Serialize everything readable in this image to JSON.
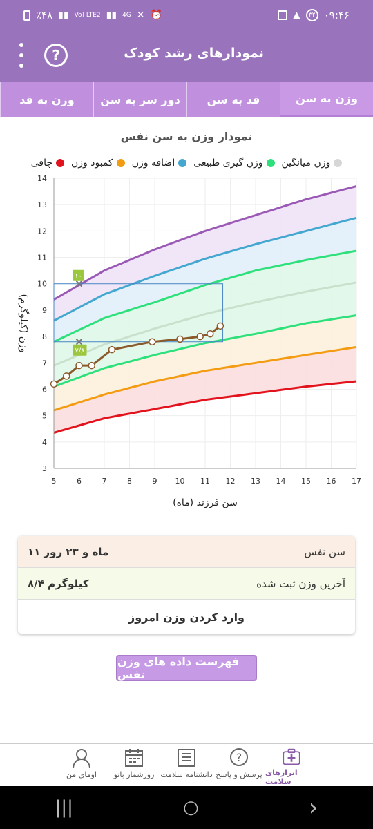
{
  "status": {
    "time": "۰۹:۴۶",
    "notif_count": "۳۲",
    "battery": "٪۴۸",
    "net_left": "Vo) LTE2",
    "net_4g": "4G"
  },
  "appbar": {
    "title": "نمودارهای رشد کودک",
    "help": "?"
  },
  "tabs": [
    {
      "label": "وزن به سن",
      "active": true
    },
    {
      "label": "قد به سن",
      "active": false
    },
    {
      "label": "دور سر به سن",
      "active": false
    },
    {
      "label": "وزن به قد",
      "active": false
    }
  ],
  "chart_title": "نمودار وزن به سن نفس",
  "legend": [
    {
      "label": "چاقی",
      "color": "#e3131d"
    },
    {
      "label": "کمبود وزن",
      "color": "#f39c12"
    },
    {
      "label": "اضافه وزن",
      "color": "#43a7d0"
    },
    {
      "label": "وزن گیری طبیعی",
      "color": "#2ee07c"
    },
    {
      "label": "وزن میانگین",
      "color": "#d6d6d6"
    }
  ],
  "chart_data": {
    "type": "line",
    "xlabel": "سن فرزند (ماه)",
    "ylabel": "وزن (کیلوگرم)",
    "xlim": [
      5,
      17
    ],
    "ylim": [
      3,
      14
    ],
    "xticks": [
      5,
      6,
      7,
      8,
      9,
      10,
      11,
      12,
      13,
      14,
      15,
      16,
      17
    ],
    "yticks": [
      3,
      4,
      5,
      6,
      7,
      8,
      9,
      10,
      11,
      12,
      13,
      14
    ],
    "curves": [
      {
        "color": "#9b59b6",
        "fill": "#efe3f6",
        "points": [
          [
            5,
            9.4
          ],
          [
            7,
            10.5
          ],
          [
            9,
            11.3
          ],
          [
            11,
            12.0
          ],
          [
            13,
            12.6
          ],
          [
            15,
            13.2
          ],
          [
            17,
            13.7
          ]
        ]
      },
      {
        "color": "#43a7d0",
        "fill": "#e1eefa",
        "points": [
          [
            5,
            8.6
          ],
          [
            7,
            9.6
          ],
          [
            9,
            10.3
          ],
          [
            11,
            10.95
          ],
          [
            13,
            11.5
          ],
          [
            15,
            12.0
          ],
          [
            17,
            12.5
          ]
        ]
      },
      {
        "color": "#2ee07c",
        "fill": "#dff7e8",
        "points": [
          [
            5,
            7.8
          ],
          [
            7,
            8.7
          ],
          [
            9,
            9.3
          ],
          [
            11,
            9.95
          ],
          [
            13,
            10.5
          ],
          [
            15,
            10.9
          ],
          [
            17,
            11.25
          ]
        ]
      },
      {
        "color": "#c8e0cc",
        "fill": "#dff7e8",
        "points": [
          [
            5,
            6.9
          ],
          [
            7,
            7.7
          ],
          [
            9,
            8.3
          ],
          [
            11,
            8.85
          ],
          [
            13,
            9.3
          ],
          [
            15,
            9.7
          ],
          [
            17,
            10.05
          ]
        ]
      },
      {
        "color": "#2ee07c",
        "fill": "#fdf1dc",
        "points": [
          [
            5,
            6.1
          ],
          [
            7,
            6.8
          ],
          [
            9,
            7.3
          ],
          [
            11,
            7.75
          ],
          [
            13,
            8.1
          ],
          [
            15,
            8.5
          ],
          [
            17,
            8.8
          ]
        ]
      },
      {
        "color": "#f39c12",
        "fill": "#fbdede",
        "points": [
          [
            5,
            5.2
          ],
          [
            7,
            5.8
          ],
          [
            9,
            6.3
          ],
          [
            11,
            6.7
          ],
          [
            13,
            7.0
          ],
          [
            15,
            7.3
          ],
          [
            17,
            7.6
          ]
        ]
      },
      {
        "color": "#e3131d",
        "fill": null,
        "points": [
          [
            5,
            4.35
          ],
          [
            7,
            4.9
          ],
          [
            9,
            5.25
          ],
          [
            11,
            5.6
          ],
          [
            13,
            5.85
          ],
          [
            15,
            6.1
          ],
          [
            17,
            6.3
          ]
        ]
      }
    ],
    "series": [
      {
        "color": "#8b5a2b",
        "x": [
          5,
          5.5,
          6,
          6.5,
          7.3,
          8.9,
          10,
          10.8,
          11.2,
          11.6
        ],
        "y": [
          6.2,
          6.5,
          6.9,
          6.9,
          7.5,
          7.8,
          7.9,
          8.0,
          8.1,
          8.4
        ]
      }
    ],
    "markers": [
      {
        "x": 6,
        "y": 10,
        "label": "۱۰"
      },
      {
        "x": 6,
        "y": 7.8,
        "label": "۷/۸"
      }
    ],
    "bands_label": "",
    "highlight_box": {
      "x0": 5,
      "x1": 11.7,
      "y0": 7.8,
      "y1": 10
    }
  },
  "info": {
    "age_label": "سن نفس",
    "age_value": "۱۱ ماه و ۲۳ روز",
    "last_weight_label": "آخرین وزن ثبت شده",
    "last_weight_value": "۸/۴ کیلوگرم",
    "enter_today": "وارد کردن وزن امروز"
  },
  "list_button": "فهرست داده های وزن نفس",
  "bottomnav": [
    {
      "label": "ابزارهای سلامت",
      "icon": "medical-kit-icon",
      "active": true
    },
    {
      "label": "پرسش و پاسخ",
      "icon": "question-bubble-icon",
      "active": false
    },
    {
      "label": "دانشنامه سلامت",
      "icon": "book-icon",
      "active": false
    },
    {
      "label": "روزشمار بانو",
      "icon": "calendar-icon",
      "active": false
    },
    {
      "label": "اومای من",
      "icon": "user-icon",
      "active": false
    }
  ],
  "sysnav": {
    "recent": "|||",
    "home": "○",
    "back": "›"
  }
}
